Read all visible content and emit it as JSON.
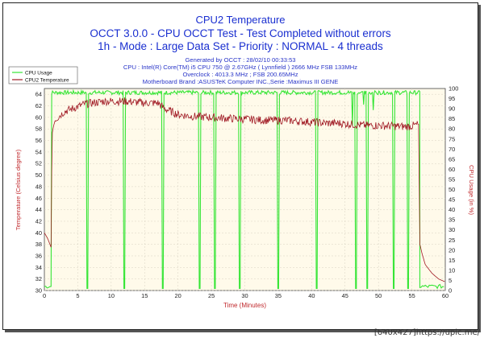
{
  "chart_data": {
    "type": "line",
    "title": "CPU2 Temperature",
    "subtitle1": "OCCT 3.0.0 - CPU OCCT Test - Test Completed without errors",
    "subtitle2": "1h - Mode : Large Data Set - Priority : NORMAL - 4 threads",
    "info": [
      "Generated by OCCT : 28/02/10 00:33:53",
      "CPU : Intel(R) Core(TM) i5 CPU 750 @ 2.67GHz ( Lynnfield ) 2666 MHz FSB 133MHz",
      "Overclock : 4013.3 MHz ; FSB 200.65MHz",
      "Motherboard Brand :ASUSTeK Computer INC.,Serie :Maximus III GENE"
    ],
    "xlabel": "Time (Minutes)",
    "ylabel": "Temperature (Celsius degree)",
    "y2label": "CPU Usage (in %)",
    "xlim": [
      0,
      60
    ],
    "ylim": [
      30,
      65
    ],
    "y2lim": [
      0,
      100
    ],
    "x_ticks": [
      "0",
      "5",
      "10",
      "15",
      "20",
      "25",
      "30",
      "35",
      "40",
      "45",
      "50",
      "55",
      "60"
    ],
    "y_ticks": [
      "30",
      "32",
      "34",
      "36",
      "38",
      "40",
      "42",
      "44",
      "46",
      "48",
      "50",
      "52",
      "54",
      "56",
      "58",
      "60",
      "62",
      "64"
    ],
    "y2_ticks": [
      "0",
      "5",
      "10",
      "15",
      "20",
      "25",
      "30",
      "35",
      "40",
      "45",
      "50",
      "55",
      "60",
      "65",
      "70",
      "75",
      "80",
      "85",
      "90",
      "95",
      "100"
    ],
    "series": [
      {
        "name": "CPU Usage",
        "axis": "right",
        "color": "#36e536",
        "high_level": 98,
        "drops_at_minutes": [
          6.4,
          12.0,
          17.7,
          23.3,
          25.5,
          29.2,
          35.0,
          40.8,
          46.6,
          48.3,
          52.3,
          54.4
        ],
        "test_start": 1.1,
        "test_end": 56.2,
        "idle_level": 1
      },
      {
        "name": "CPU2 Temperature",
        "axis": "left",
        "color": "#a01a24",
        "x": [
          0,
          0.5,
          1.0,
          1.15,
          1.5,
          3,
          6,
          9,
          12,
          15,
          17,
          18,
          20,
          22,
          25,
          28,
          30,
          33,
          36,
          40,
          42,
          44,
          46,
          48,
          50,
          52,
          54,
          55,
          56,
          56.2,
          56.5,
          57,
          58,
          59,
          60
        ],
        "values": [
          40,
          39,
          37.5,
          57,
          59.5,
          61,
          62.3,
          62.8,
          62.8,
          62.5,
          62.5,
          61.5,
          60.5,
          60.2,
          60,
          59.8,
          59.7,
          59.5,
          59.5,
          59.2,
          59,
          59,
          58.8,
          58.6,
          58.6,
          58.5,
          58.4,
          58.5,
          58.8,
          38,
          36.5,
          34.5,
          33,
          32,
          31.5
        ]
      }
    ],
    "legend_position": "top-left"
  },
  "watermark": "[640x427]https://upic.me/"
}
